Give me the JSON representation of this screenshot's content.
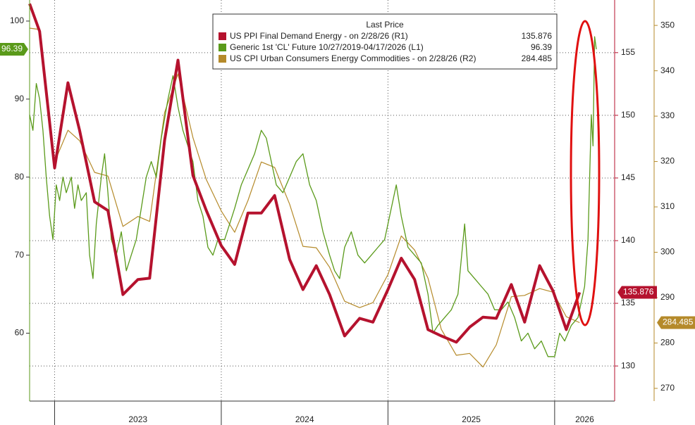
{
  "chart_data": {
    "type": "line",
    "legend_title": "Last Price",
    "xlim": [
      2022.85,
      2026.36
    ],
    "xticks": [
      2023,
      2024,
      2025,
      2026
    ],
    "ylim": [
      51.3,
      102.7
    ],
    "yticks": [
      60,
      70,
      80,
      90,
      100
    ],
    "y2lim": [
      127.2,
      159.2
    ],
    "y2ticks": [
      130,
      135,
      140,
      145,
      150,
      155
    ],
    "y3lim": [
      267.2,
      355.6
    ],
    "y3ticks": [
      270,
      280,
      290,
      300,
      310,
      320,
      330,
      340,
      350
    ],
    "grid": true,
    "series": [
      {
        "name": "US PPI Final Demand Energy -  on 2/28/26  (R1)",
        "color": "#b5122e",
        "axis": "y2",
        "x": [
          2022.85,
          2022.91,
          2023.0,
          2023.08,
          2023.15,
          2023.24,
          2023.32,
          2023.41,
          2023.5,
          2023.57,
          2023.66,
          2023.74,
          2023.83,
          2023.91,
          2024.0,
          2024.08,
          2024.16,
          2024.24,
          2024.32,
          2024.41,
          2024.49,
          2024.57,
          2024.65,
          2024.74,
          2024.83,
          2024.91,
          2025.0,
          2025.08,
          2025.16,
          2025.24,
          2025.32,
          2025.41,
          2025.49,
          2025.57,
          2025.65,
          2025.74,
          2025.82,
          2025.91,
          2025.99,
          2026.07,
          2026.15
        ],
        "values": [
          158.9,
          156.7,
          145.8,
          152.6,
          148.8,
          143.1,
          142.4,
          135.7,
          136.9,
          137.0,
          148.0,
          154.4,
          145.2,
          142.4,
          139.6,
          138.1,
          142.2,
          142.2,
          143.6,
          138.5,
          136.1,
          138.0,
          135.7,
          132.4,
          133.8,
          133.5,
          136.1,
          138.6,
          136.9,
          132.9,
          132.4,
          131.9,
          133.1,
          133.9,
          133.8,
          136.5,
          133.5,
          138.0,
          136.0,
          132.9,
          135.876
        ]
      },
      {
        "name": "Generic 1st 'CL' Future 10/27/2019-04/17/2026  (L1)",
        "color": "#5a9a1a",
        "axis": "y",
        "x": [
          2022.85,
          2022.87,
          2022.89,
          2022.91,
          2022.93,
          2022.95,
          2022.97,
          2022.99,
          2023.01,
          2023.03,
          2023.05,
          2023.07,
          2023.1,
          2023.12,
          2023.14,
          2023.16,
          2023.19,
          2023.21,
          2023.23,
          2023.25,
          2023.28,
          2023.3,
          2023.32,
          2023.34,
          2023.37,
          2023.4,
          2023.43,
          2023.46,
          2023.49,
          2023.52,
          2023.55,
          2023.58,
          2023.61,
          2023.64,
          2023.68,
          2023.71,
          2023.74,
          2023.77,
          2023.8,
          2023.83,
          2023.86,
          2023.89,
          2023.92,
          2023.95,
          2023.98,
          2024.02,
          2024.05,
          2024.08,
          2024.12,
          2024.16,
          2024.2,
          2024.24,
          2024.27,
          2024.3,
          2024.33,
          2024.37,
          2024.41,
          2024.45,
          2024.49,
          2024.53,
          2024.57,
          2024.61,
          2024.65,
          2024.68,
          2024.71,
          2024.74,
          2024.78,
          2024.82,
          2024.86,
          2024.9,
          2024.94,
          2024.98,
          2025.02,
          2025.05,
          2025.08,
          2025.12,
          2025.16,
          2025.2,
          2025.24,
          2025.27,
          2025.3,
          2025.34,
          2025.38,
          2025.42,
          2025.46,
          2025.48,
          2025.52,
          2025.56,
          2025.6,
          2025.64,
          2025.68,
          2025.72,
          2025.76,
          2025.8,
          2025.84,
          2025.88,
          2025.92,
          2025.96,
          2026.0,
          2026.03,
          2026.06,
          2026.1,
          2026.14,
          2026.18,
          2026.2,
          2026.22,
          2026.23,
          2026.24,
          2026.25
        ],
        "values": [
          88,
          86,
          92,
          90,
          86,
          80,
          75,
          72,
          79,
          77,
          80,
          78,
          80,
          76,
          79,
          77,
          78,
          70,
          67,
          74,
          80,
          83,
          78,
          72,
          70,
          73,
          68,
          70,
          72,
          76,
          80,
          82,
          80,
          85,
          90,
          93,
          89,
          86,
          84,
          82,
          77,
          75,
          71,
          70,
          72,
          72,
          74,
          76,
          79,
          81,
          83,
          86,
          85,
          82,
          79,
          78,
          80,
          82,
          83,
          79,
          77,
          73,
          70,
          68,
          67,
          71,
          73,
          70,
          69,
          70,
          71,
          72,
          76,
          79,
          75,
          71,
          70,
          69,
          65,
          60,
          61,
          62,
          63,
          65,
          74,
          68,
          67,
          66,
          65,
          63,
          63,
          64,
          62,
          59,
          60,
          58,
          59,
          57,
          57,
          60,
          59,
          61,
          62,
          66,
          72,
          88,
          84,
          98,
          96.39
        ]
      },
      {
        "name": "US CPI Urban Consumers Energy Commodities -  on 2/28/26  (R2)",
        "color": "#b58a2a",
        "axis": "y3",
        "x": [
          2022.85,
          2022.91,
          2023.0,
          2023.08,
          2023.15,
          2023.24,
          2023.32,
          2023.41,
          2023.5,
          2023.57,
          2023.66,
          2023.74,
          2023.83,
          2023.91,
          2024.0,
          2024.08,
          2024.16,
          2024.24,
          2024.32,
          2024.41,
          2024.49,
          2024.57,
          2024.65,
          2024.74,
          2024.83,
          2024.91,
          2025.0,
          2025.08,
          2025.16,
          2025.24,
          2025.32,
          2025.41,
          2025.49,
          2025.57,
          2025.65,
          2025.74,
          2025.82,
          2025.91,
          2025.99,
          2026.07,
          2026.15
        ],
        "values": [
          349.4,
          349.1,
          319.9,
          326.9,
          324.6,
          317.6,
          316.8,
          305.7,
          307.9,
          306.8,
          330.8,
          339.3,
          325.3,
          316.0,
          309.1,
          304.4,
          311.4,
          319.9,
          318.7,
          310.6,
          301.3,
          301.0,
          296.7,
          289.2,
          287.8,
          288.9,
          295.1,
          303.6,
          300.5,
          294.3,
          283.0,
          277.3,
          277.7,
          274.7,
          279.6,
          290.2,
          290.5,
          292.0,
          291.2,
          285.8,
          284.485
        ]
      }
    ]
  }
}
